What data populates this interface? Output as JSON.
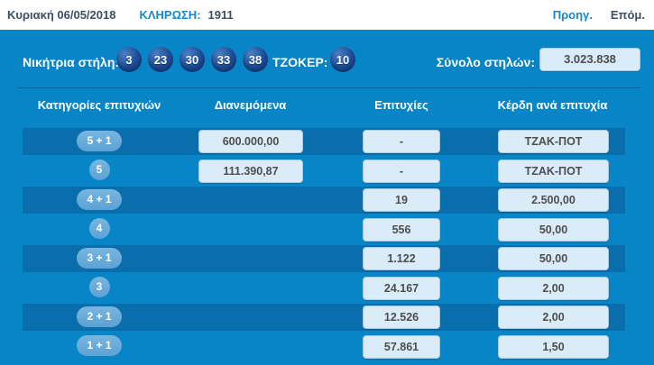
{
  "top_bar": {
    "date": "Κυριακή 06/05/2018",
    "draw_label": "ΚΛΗΡΩΣΗ:",
    "draw_number": "1911",
    "prev_label": "Προηγ.",
    "next_label": "Επόμ."
  },
  "winning": {
    "label": "Νικήτρια στήλη:",
    "numbers": [
      "3",
      "23",
      "30",
      "33",
      "38"
    ],
    "tzoker_label": "ΤΖΟΚΕΡ:",
    "tzoker_number": "10",
    "total_label": "Σύνολο στηλών:",
    "total_value": "3.023.838"
  },
  "table": {
    "headers": [
      "Κατηγορίες επιτυχιών",
      "Διανεμόμενα",
      "Επιτυχίες",
      "Κέρδη ανά επιτυχία"
    ],
    "rows": [
      {
        "category": "5 + 1",
        "distributed": "600.000,00",
        "winners": "-",
        "prize": "ΤΖΑΚ-ΠΟΤ"
      },
      {
        "category": "5",
        "distributed": "111.390,87",
        "winners": "-",
        "prize": "ΤΖΑΚ-ΠΟΤ"
      },
      {
        "category": "4 + 1",
        "distributed": "",
        "winners": "19",
        "prize": "2.500,00"
      },
      {
        "category": "4",
        "distributed": "",
        "winners": "556",
        "prize": "50,00"
      },
      {
        "category": "3 + 1",
        "distributed": "",
        "winners": "1.122",
        "prize": "50,00"
      },
      {
        "category": "3",
        "distributed": "",
        "winners": "24.167",
        "prize": "2,00"
      },
      {
        "category": "2 + 1",
        "distributed": "",
        "winners": "12.526",
        "prize": "2,00"
      },
      {
        "category": "1 + 1",
        "distributed": "",
        "winners": "57.861",
        "prize": "1,50"
      }
    ]
  },
  "colors": {
    "panel": "#0885c6",
    "stripe": "#0a6dac",
    "ball": "#1c4c97",
    "badge": "#65a9d9",
    "value_box": "#d9ecf8",
    "link_blue": "#1987c8",
    "dark_text": "#3d4e63"
  }
}
